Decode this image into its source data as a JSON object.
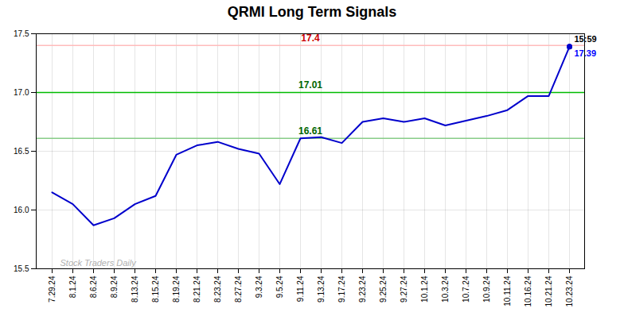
{
  "chart_data": {
    "type": "line",
    "title": "QRMI Long Term Signals",
    "categories": [
      "7.29.24",
      "8.1.24",
      "8.6.24",
      "8.9.24",
      "8.13.24",
      "8.15.24",
      "8.19.24",
      "8.21.24",
      "8.23.24",
      "8.27.24",
      "9.3.24",
      "9.5.24",
      "9.11.24",
      "9.13.24",
      "9.17.24",
      "9.23.24",
      "9.25.24",
      "9.27.24",
      "10.1.24",
      "10.3.24",
      "10.7.24",
      "10.9.24",
      "10.11.24",
      "10.16.24",
      "10.21.24",
      "10.23.24"
    ],
    "values": [
      16.15,
      16.05,
      15.87,
      15.93,
      16.05,
      16.12,
      16.47,
      16.55,
      16.58,
      16.52,
      16.48,
      16.22,
      16.61,
      16.62,
      16.57,
      16.75,
      16.78,
      16.75,
      16.78,
      16.72,
      16.76,
      16.8,
      16.85,
      16.97,
      16.97,
      17.39
    ],
    "color": "#0000cc",
    "ylim": [
      15.5,
      17.5
    ],
    "yticks": [
      15.5,
      {
        "value": 16.0,
        "label": "16.0"
      },
      16.5,
      {
        "value": 17.0,
        "label": "17.0"
      },
      17.5
    ],
    "grid": true,
    "hlines": [
      {
        "value": 17.4,
        "label": "17.4",
        "color": "#ffbbbb",
        "label_color": "#cc0000"
      },
      {
        "value": 17.0,
        "label": "17.01",
        "color": "#00bb00",
        "label_color": "#006600"
      },
      {
        "value": 16.61,
        "label": "16.61",
        "color": "#88cc88",
        "label_color": "#006600"
      }
    ],
    "annotations": [
      {
        "x": "10.23.24",
        "y": 17.39,
        "text": "15:59",
        "color": "#000000"
      },
      {
        "x": "10.23.24",
        "y": 17.39,
        "text": "17.39",
        "color": "#0000ff"
      }
    ],
    "watermark": {
      "text": "Stock Traders Daily",
      "color": "#b0b0b0"
    }
  }
}
